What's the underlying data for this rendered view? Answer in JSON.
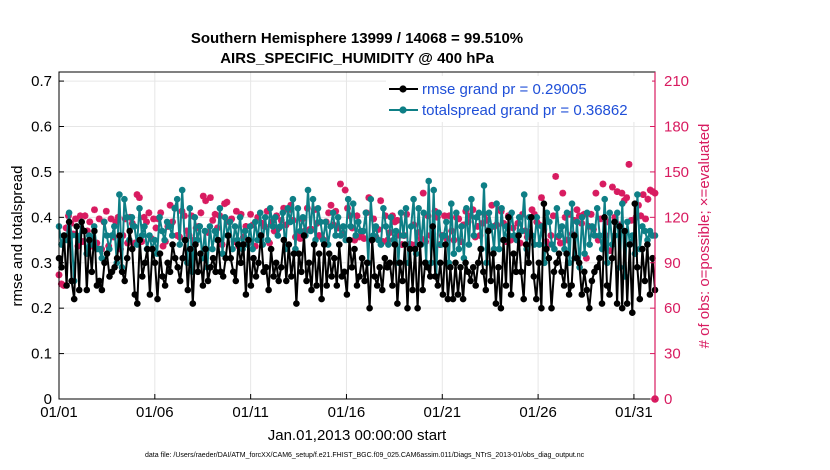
{
  "chart_data": {
    "type": "line",
    "title_line1": "Southern Hemisphere 13999 / 14068 = 99.510%",
    "title_line2": "AIRS_SPECIFIC_HUMIDITY @ 400 hPa",
    "xlabel": "Jan.01,2013 00:00:00 start",
    "ylabel_left": "rmse and totalspread",
    "ylabel_right": "# of obs: o=possible; ×=evaluated",
    "footer": "data file: /Users/raeder/DAI/ATM_forcXX/CAM6_setup/f.e21.FHIST_BGC.f09_025.CAM6assim.011/Diags_NTrS_2013-01/obs_diag_output.nc",
    "x_ticks": [
      "01/01",
      "01/06",
      "01/11",
      "01/16",
      "01/21",
      "01/26",
      "01/31"
    ],
    "x_tick_days": [
      0,
      5,
      10,
      15,
      20,
      25,
      30
    ],
    "xlim": [
      0,
      31.1
    ],
    "ylim_left": [
      0,
      0.72
    ],
    "yticks_left": [
      "0",
      "0.1",
      "0.2",
      "0.3",
      "0.4",
      "0.5",
      "0.6",
      "0.7"
    ],
    "ylim_right": [
      0,
      216
    ],
    "yticks_right": [
      "0",
      "30",
      "60",
      "90",
      "120",
      "150",
      "180",
      "210"
    ],
    "colors": {
      "rmse": "#000000",
      "spread": "#0e7f86",
      "obs": "#d81b60",
      "legend_text": "#1f4fd8",
      "right_axis": "#d81b60"
    },
    "series": [
      {
        "name": "rmse grand pr = 0.29005",
        "key": "rmse",
        "values": [
          0.31,
          0.29,
          0.36,
          0.25,
          0.39,
          0.26,
          0.22,
          0.38,
          0.24,
          0.39,
          0.37,
          0.24,
          0.35,
          0.28,
          0.37,
          0.25,
          0.26,
          0.24,
          0.3,
          0.32,
          0.27,
          0.28,
          0.29,
          0.31,
          0.36,
          0.28,
          0.26,
          0.31,
          0.37,
          0.33,
          0.23,
          0.21,
          0.35,
          0.27,
          0.3,
          0.33,
          0.23,
          0.33,
          0.3,
          0.22,
          0.32,
          0.27,
          0.25,
          0.3,
          0.28,
          0.34,
          0.31,
          0.29,
          0.26,
          0.31,
          0.35,
          0.24,
          0.33,
          0.21,
          0.34,
          0.28,
          0.32,
          0.25,
          0.33,
          0.26,
          0.29,
          0.31,
          0.28,
          0.35,
          0.28,
          0.27,
          0.31,
          0.36,
          0.31,
          0.28,
          0.26,
          0.34,
          0.3,
          0.34,
          0.23,
          0.35,
          0.25,
          0.31,
          0.27,
          0.3,
          0.36,
          0.28,
          0.29,
          0.24,
          0.33,
          0.27,
          0.3,
          0.26,
          0.29,
          0.35,
          0.26,
          0.34,
          0.27,
          0.32,
          0.21,
          0.32,
          0.28,
          0.36,
          0.26,
          0.3,
          0.24,
          0.34,
          0.25,
          0.32,
          0.22,
          0.34,
          0.25,
          0.32,
          0.27,
          0.31,
          0.25,
          0.34,
          0.27,
          0.28,
          0.23,
          0.35,
          0.29,
          0.33,
          0.25,
          0.27,
          0.31,
          0.26,
          0.3,
          0.2,
          0.35,
          0.27,
          0.25,
          0.29,
          0.24,
          0.31,
          0.29,
          0.3,
          0.25,
          0.34,
          0.21,
          0.3,
          0.26,
          0.34,
          0.2,
          0.33,
          0.24,
          0.33,
          0.2,
          0.34,
          0.24,
          0.3,
          0.29,
          0.27,
          0.38,
          0.27,
          0.25,
          0.3,
          0.23,
          0.34,
          0.22,
          0.29,
          0.22,
          0.3,
          0.23,
          0.29,
          0.22,
          0.3,
          0.28,
          0.26,
          0.29,
          0.25,
          0.3,
          0.33,
          0.28,
          0.24,
          0.37,
          0.26,
          0.32,
          0.21,
          0.29,
          0.2,
          0.35,
          0.25,
          0.4,
          0.23,
          0.32,
          0.28,
          0.36,
          0.28,
          0.22,
          0.34,
          0.3,
          0.4,
          0.27,
          0.22,
          0.3,
          0.2,
          0.43,
          0.33,
          0.31,
          0.2,
          0.28,
          0.3,
          0.32,
          0.28,
          0.25,
          0.32,
          0.23,
          0.25,
          0.36,
          0.31,
          0.3,
          0.23,
          0.28,
          0.24,
          0.2,
          0.26,
          0.28,
          0.29,
          0.31,
          0.21,
          0.4,
          0.25,
          0.23,
          0.31,
          0.39,
          0.21,
          0.38,
          0.2,
          0.37,
          0.21,
          0.34,
          0.19,
          0.43,
          0.29,
          0.22,
          0.33,
          0.26,
          0.34,
          0.23,
          0.31,
          0.24
        ]
      },
      {
        "name": "totalspread grand pr = 0.36862",
        "key": "spread",
        "values": [
          0.38,
          0.34,
          0.36,
          0.35,
          0.41,
          0.36,
          0.26,
          0.36,
          0.35,
          0.39,
          0.37,
          0.32,
          0.36,
          0.34,
          0.38,
          0.33,
          0.33,
          0.31,
          0.39,
          0.36,
          0.33,
          0.36,
          0.38,
          0.3,
          0.45,
          0.29,
          0.44,
          0.4,
          0.35,
          0.4,
          0.38,
          0.34,
          0.42,
          0.36,
          0.38,
          0.33,
          0.36,
          0.33,
          0.35,
          0.32,
          0.4,
          0.37,
          0.35,
          0.39,
          0.38,
          0.36,
          0.42,
          0.44,
          0.34,
          0.46,
          0.35,
          0.3,
          0.42,
          0.28,
          0.4,
          0.35,
          0.38,
          0.31,
          0.37,
          0.29,
          0.38,
          0.33,
          0.37,
          0.35,
          0.42,
          0.32,
          0.4,
          0.36,
          0.39,
          0.33,
          0.38,
          0.35,
          0.4,
          0.33,
          0.37,
          0.34,
          0.38,
          0.33,
          0.39,
          0.35,
          0.41,
          0.34,
          0.4,
          0.35,
          0.42,
          0.38,
          0.4,
          0.36,
          0.38,
          0.41,
          0.33,
          0.42,
          0.39,
          0.44,
          0.33,
          0.42,
          0.37,
          0.4,
          0.36,
          0.46,
          0.37,
          0.44,
          0.35,
          0.42,
          0.39,
          0.35,
          0.39,
          0.34,
          0.38,
          0.41,
          0.36,
          0.4,
          0.36,
          0.38,
          0.35,
          0.44,
          0.38,
          0.43,
          0.36,
          0.39,
          0.37,
          0.37,
          0.41,
          0.3,
          0.44,
          0.36,
          0.38,
          0.35,
          0.34,
          0.42,
          0.38,
          0.34,
          0.4,
          0.35,
          0.37,
          0.3,
          0.41,
          0.36,
          0.42,
          0.3,
          0.38,
          0.44,
          0.32,
          0.42,
          0.34,
          0.41,
          0.3,
          0.48,
          0.3,
          0.46,
          0.27,
          0.41,
          0.34,
          0.36,
          0.39,
          0.3,
          0.43,
          0.32,
          0.41,
          0.33,
          0.38,
          0.31,
          0.42,
          0.34,
          0.44,
          0.36,
          0.4,
          0.41,
          0.33,
          0.47,
          0.3,
          0.41,
          0.38,
          0.33,
          0.43,
          0.33,
          0.42,
          0.35,
          0.38,
          0.36,
          0.41,
          0.36,
          0.35,
          0.4,
          0.37,
          0.45,
          0.33,
          0.4,
          0.36,
          0.34,
          0.4,
          0.34,
          0.38,
          0.3,
          0.41,
          0.39,
          0.34,
          0.33,
          0.42,
          0.36,
          0.38,
          0.33,
          0.41,
          0.3,
          0.43,
          0.31,
          0.39,
          0.29,
          0.4,
          0.32,
          0.41,
          0.34,
          0.38,
          0.36,
          0.42,
          0.36,
          0.33,
          0.44,
          0.3,
          0.41,
          0.34,
          0.36,
          0.41,
          0.29,
          0.43,
          0.27,
          0.39,
          0.34,
          0.36,
          0.32,
          0.45,
          0.33,
          0.38,
          0.37,
          0.35,
          0.37,
          0.36,
          0.36
        ]
      },
      {
        "name": "obs evaluated",
        "key": "obs",
        "values": [
          82,
          76,
          75,
          113,
          121,
          116,
          109,
          119,
          101,
          121,
          104,
          121,
          111,
          117,
          101,
          125,
          103,
          119,
          99,
          117,
          124,
          101,
          119,
          107,
          117,
          120,
          99,
          108,
          119,
          103,
          120,
          116,
          103,
          135,
          133,
          104,
          120,
          117,
          123,
          106,
          119,
          113,
          119,
          123,
          101,
          104,
          114,
          128,
          117,
          126,
          108,
          107,
          124,
          121,
          111,
          108,
          121,
          105,
          113,
          114,
          123,
          134,
          131,
          110,
          133,
          118,
          122,
          113,
          121,
          102,
          129,
          130,
          117,
          119,
          104,
          124,
          101,
          122,
          107,
          114,
          103,
          122,
          115,
          101,
          120,
          108,
          116,
          114,
          124,
          103,
          117,
          111,
          121,
          113,
          118,
          126,
          115,
          125,
          128,
          118,
          107,
          109,
          106,
          119,
          111,
          126,
          112,
          112,
          125,
          116,
          108,
          107,
          105,
          117,
          123,
          128,
          115,
          124,
          113,
          142,
          109,
          138,
          126,
          121,
          113,
          105,
          121,
          107,
          110,
          106,
          123,
          133,
          105,
          119,
          107,
          112,
          131,
          104,
          121,
          105,
          110,
          121,
          117,
          118,
          108,
          102,
          108,
          122,
          102,
          102,
          115,
          102,
          110,
          106,
          136,
          104,
          121,
          108,
          109,
          124,
          120,
          102,
          108,
          121,
          106,
          121,
          111,
          105,
          120,
          119,
          104,
          115,
          124,
          117,
          121,
          125,
          107,
          114,
          108,
          116,
          122,
          118,
          112,
          128,
          114,
          115,
          125,
          124,
          116,
          104,
          121,
          105,
          113,
          107,
          116,
          103,
          122,
          111,
          107,
          110,
          125,
          122,
          117,
          115,
          133,
          112,
          104,
          102,
          108,
          121,
          147,
          107,
          103,
          136,
          120,
          105,
          122,
          109,
          118,
          125,
          121,
          116,
          122,
          93,
          114,
          122,
          112,
          136,
          105,
          119,
          142,
          108,
          117,
          98,
          140,
          120,
          137,
          115,
          136,
          131,
          133,
          155,
          118,
          105,
          120,
          128,
          121,
          135,
          119,
          132,
          138,
          137,
          136
        ]
      }
    ]
  }
}
